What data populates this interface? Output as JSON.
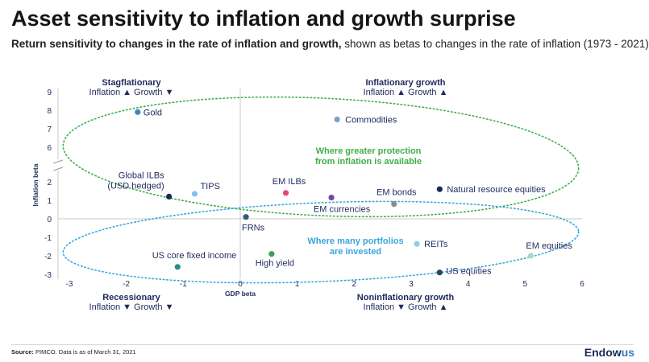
{
  "header": {
    "title": "Asset sensitivity to inflation and growth surprise",
    "subtitle_bold": "Return sensitivity to changes in the rate of inflation and growth,",
    "subtitle_rest": " shown as betas to changes in the rate of inflation (1973 - 2021)"
  },
  "footer": {
    "source_bold": "Source:",
    "source_rest": " PIMCO. Data is as of March 31, 2021",
    "logo_main": "Endow",
    "logo_accent": "us"
  },
  "colors": {
    "axis_text": "#1f2a5c",
    "green_ellipse": "#3fae49",
    "blue_ellipse": "#3aa6dd"
  },
  "chart_data": {
    "type": "scatter",
    "xlabel": "GDP beta",
    "ylabel": "Inflation beta",
    "xlim": [
      -3,
      6
    ],
    "ylim": [
      -3,
      9
    ],
    "y_axis_break": true,
    "x_ticks": [
      "-3",
      "-2",
      "-1",
      "0",
      "1",
      "2",
      "3",
      "4",
      "5",
      "6"
    ],
    "y_ticks": [
      "9",
      "8",
      "7",
      "6",
      "2",
      "1",
      "0",
      "-1",
      "-2",
      "-3"
    ],
    "grid": false,
    "points": [
      {
        "label": "Gold",
        "x": -1.8,
        "y": 7.9,
        "color": "#3a88c8"
      },
      {
        "label": "Commodities",
        "x": 1.7,
        "y": 7.5,
        "color": "#7d9fc8"
      },
      {
        "label": "Global ILBs (USD hedged)",
        "x": -1.25,
        "y": 1.2,
        "color": "#1b2a55"
      },
      {
        "label": "TIPS",
        "x": -0.8,
        "y": 1.35,
        "color": "#7cc3ea"
      },
      {
        "label": "EM ILBs",
        "x": 0.8,
        "y": 1.4,
        "color": "#e8457c"
      },
      {
        "label": "EM currencies",
        "x": 1.6,
        "y": 1.15,
        "color": "#7b3fb5"
      },
      {
        "label": "EM bonds",
        "x": 2.7,
        "y": 0.8,
        "color": "#8c8c8c"
      },
      {
        "label": "Natural resource equities",
        "x": 3.5,
        "y": 1.6,
        "color": "#1b2a55"
      },
      {
        "label": "FRNs",
        "x": 0.1,
        "y": 0.1,
        "color": "#2c5d7c"
      },
      {
        "label": "REITs",
        "x": 3.1,
        "y": -1.35,
        "color": "#8ccfe6"
      },
      {
        "label": "EM equities",
        "x": 5.1,
        "y": -2.0,
        "color": "#a7d9c5"
      },
      {
        "label": "US core fixed income",
        "x": -1.1,
        "y": -2.6,
        "color": "#2a8a88"
      },
      {
        "label": "High yield",
        "x": 0.55,
        "y": -1.9,
        "color": "#3c9c5a"
      },
      {
        "label": "US equities",
        "x": 3.5,
        "y": -2.9,
        "color": "#1e4a5c"
      }
    ],
    "quadrants": [
      {
        "name": "Stagflationary",
        "detail": "Inflation ▲ Growth ▼"
      },
      {
        "name": "Inflationary growth",
        "detail": "Inflation ▲ Growth ▲"
      },
      {
        "name": "Recessionary",
        "detail": "Inflation ▼ Growth ▼"
      },
      {
        "name": "Noninflationary growth",
        "detail": "Inflation ▼ Growth ▲"
      }
    ],
    "annotations": [
      {
        "text": "Where greater protection from inflation is available",
        "lines": [
          "Where greater protection",
          "from inflation is available"
        ],
        "color": "#3fae49"
      },
      {
        "text": "Where many portfolios are invested",
        "lines": [
          "Where many portfolios",
          "are invested"
        ],
        "color": "#3aa6dd"
      }
    ]
  }
}
